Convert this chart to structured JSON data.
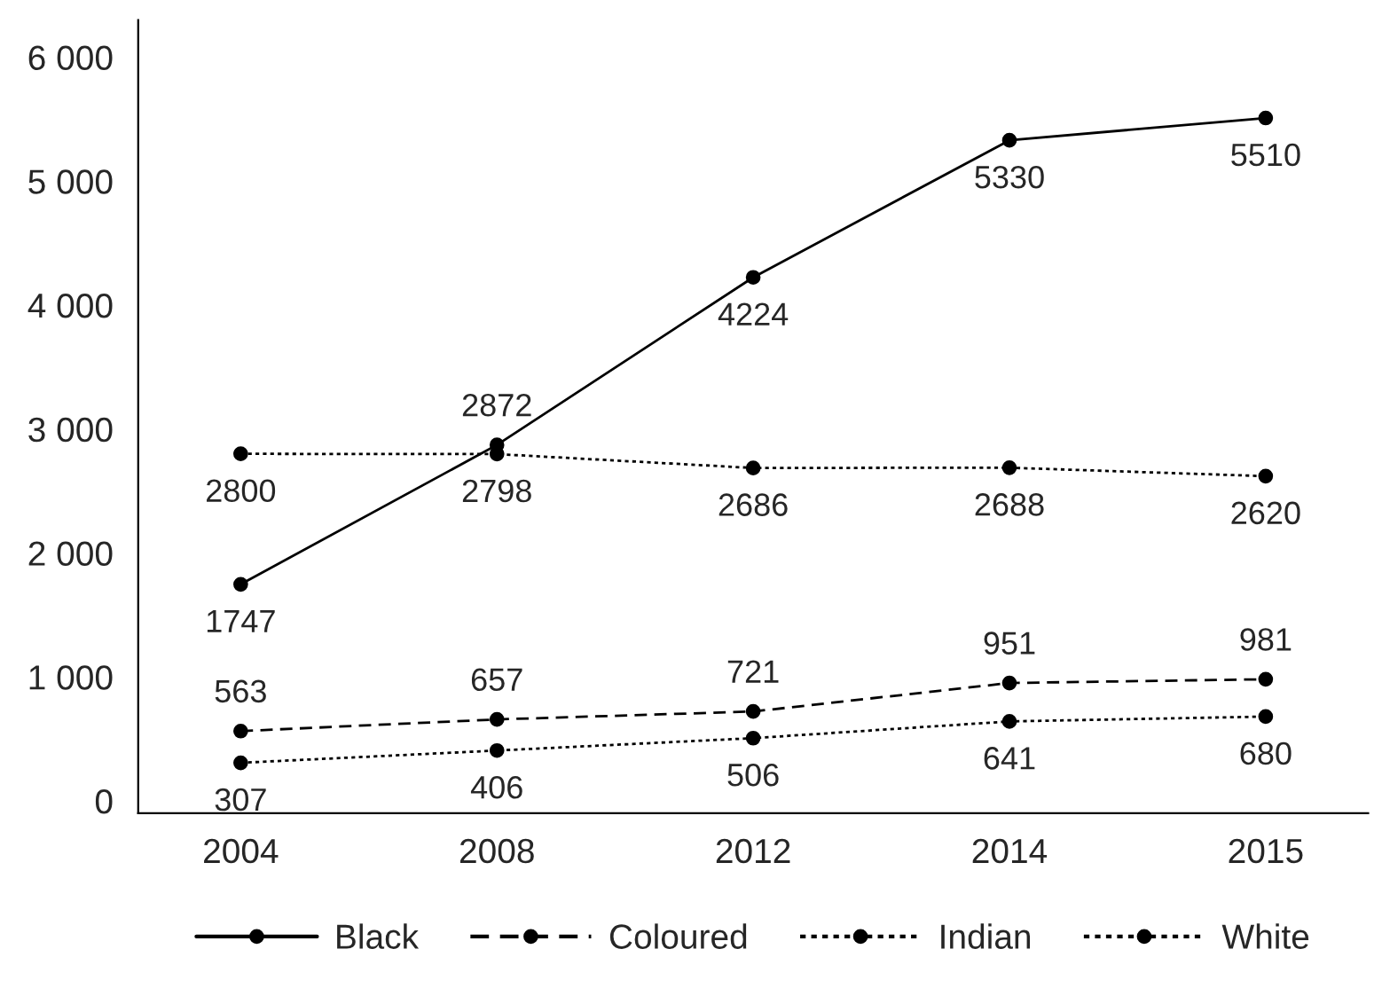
{
  "chart_data": {
    "type": "line",
    "categories": [
      "2004",
      "2008",
      "2012",
      "2014",
      "2015"
    ],
    "series": [
      {
        "name": "Black",
        "color": "#000000",
        "line_style": "solid",
        "values": [
          1747,
          2872,
          4224,
          5330,
          5510
        ]
      },
      {
        "name": "Coloured",
        "color": "#000000",
        "line_style": "dashed",
        "values": [
          563,
          657,
          721,
          951,
          981
        ]
      },
      {
        "name": "Indian",
        "color": "#000000",
        "line_style": "dotted",
        "values": [
          307,
          406,
          506,
          641,
          680
        ]
      },
      {
        "name": "White",
        "color": "#000000",
        "line_style": "dotted",
        "values": [
          2800,
          2798,
          2686,
          2688,
          2620
        ]
      }
    ],
    "ylim": [
      -100,
      6300
    ],
    "yticks": [
      {
        "value": 0,
        "label": "0"
      },
      {
        "value": 1000,
        "label": "1 000"
      },
      {
        "value": 2000,
        "label": "2 000"
      },
      {
        "value": 3000,
        "label": "3 000"
      },
      {
        "value": 4000,
        "label": "4 000"
      },
      {
        "value": 5000,
        "label": "5 000"
      },
      {
        "value": 6000,
        "label": "6 000"
      }
    ],
    "marker": "circle",
    "data_labels": true,
    "grid": false,
    "legend": "bottom"
  }
}
